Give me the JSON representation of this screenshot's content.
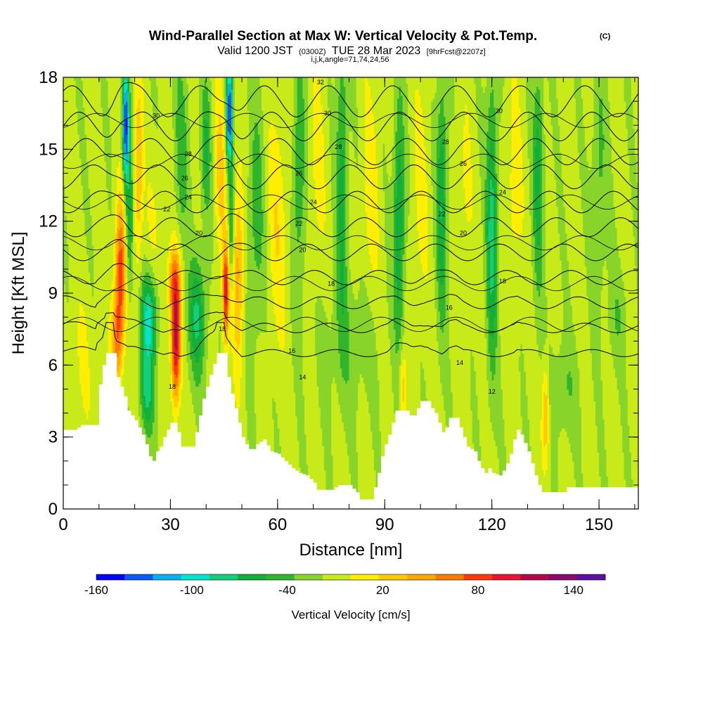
{
  "title": {
    "main": "Wind-Parallel Section at Max W: Vertical Velocity & Pot.Temp.",
    "copyright": "(C)",
    "valid_prefix": "Valid 1200 JST",
    "valid_utc": "(0300Z)",
    "valid_date": "TUE 28 Mar 2023",
    "forecast_info": "[9hrFcst@2207z]",
    "params": "i,j,k,angle=71,74,24,56"
  },
  "chart_data": {
    "type": "heatmap",
    "xlabel": "Distance [nm]",
    "ylabel": "Height [Kft MSL]",
    "xlim": [
      0,
      161
    ],
    "ylim": [
      0,
      18
    ],
    "x_ticks": [
      0,
      30,
      60,
      90,
      120,
      150
    ],
    "y_ticks": [
      0,
      3,
      6,
      9,
      12,
      15,
      18
    ],
    "x_minor_step": 10,
    "y_minor_step": 1,
    "grid": false,
    "colorbar": {
      "title": "Vertical Velocity [cm/s]",
      "placement": "bottom",
      "min": -160,
      "max": 160,
      "step": 20,
      "tick_labels": [
        "-160",
        "-100",
        "-40",
        "20",
        "80",
        "140"
      ],
      "tick_values": [
        -160,
        -100,
        -40,
        20,
        80,
        140
      ],
      "colors": [
        "#0000ff",
        "#0a5af2",
        "#0ab0f2",
        "#00e6cc",
        "#13cf7a",
        "#10b03b",
        "#30b52d",
        "#88d42a",
        "#c8ea18",
        "#ffee00",
        "#ffcb00",
        "#ffa800",
        "#ff7a00",
        "#ff3a0a",
        "#ea1530",
        "#b30a4c",
        "#8c0a6b",
        "#5a10a0"
      ]
    },
    "background_velocity": 5,
    "terrain": [
      [
        0,
        3.3
      ],
      [
        3,
        3.3
      ],
      [
        5,
        3.5
      ],
      [
        9,
        3.5
      ],
      [
        9,
        4.4
      ],
      [
        10,
        5.2
      ],
      [
        11,
        6.0
      ],
      [
        12,
        6.5
      ],
      [
        14,
        6.5
      ],
      [
        15,
        5.5
      ],
      [
        17,
        4.7
      ],
      [
        18,
        4.1
      ],
      [
        20,
        3.7
      ],
      [
        22,
        3.1
      ],
      [
        23,
        2.7
      ],
      [
        24,
        2.2
      ],
      [
        25,
        2.0
      ],
      [
        26,
        2.4
      ],
      [
        27,
        2.6
      ],
      [
        28,
        3.0
      ],
      [
        29,
        3.3
      ],
      [
        30,
        3.6
      ],
      [
        31,
        3.6
      ],
      [
        32,
        3.2
      ],
      [
        33,
        2.6
      ],
      [
        36,
        2.6
      ],
      [
        37,
        3.2
      ],
      [
        38,
        3.9
      ],
      [
        39,
        4.6
      ],
      [
        40,
        5.1
      ],
      [
        41,
        5.6
      ],
      [
        43,
        6.5
      ],
      [
        45,
        6.5
      ],
      [
        46,
        5.5
      ],
      [
        47,
        4.8
      ],
      [
        48,
        4.2
      ],
      [
        49,
        3.6
      ],
      [
        50,
        3.0
      ],
      [
        51,
        2.7
      ],
      [
        52,
        2.5
      ],
      [
        53,
        2.5
      ],
      [
        54,
        2.7
      ],
      [
        56,
        2.9
      ],
      [
        58,
        2.4
      ],
      [
        60,
        2.3
      ],
      [
        62,
        2.0
      ],
      [
        64,
        1.7
      ],
      [
        66,
        1.5
      ],
      [
        68,
        1.4
      ],
      [
        70,
        1.1
      ],
      [
        71,
        0.8
      ],
      [
        75,
        0.8
      ],
      [
        77,
        1.0
      ],
      [
        80,
        1.0
      ],
      [
        82,
        0.7
      ],
      [
        83,
        0.4
      ],
      [
        86,
        0.4
      ],
      [
        87,
        0.9
      ],
      [
        88,
        1.5
      ],
      [
        89,
        2.2
      ],
      [
        90,
        2.7
      ],
      [
        91,
        3.1
      ],
      [
        92,
        3.6
      ],
      [
        93,
        4.1
      ],
      [
        96,
        4.1
      ],
      [
        97,
        3.9
      ],
      [
        98,
        3.9
      ],
      [
        99,
        4.2
      ],
      [
        100,
        4.5
      ],
      [
        102,
        4.5
      ],
      [
        103,
        4.2
      ],
      [
        104,
        4.0
      ],
      [
        105,
        3.6
      ],
      [
        106,
        3.2
      ],
      [
        107,
        3.4
      ],
      [
        108,
        3.8
      ],
      [
        110,
        3.8
      ],
      [
        111,
        3.4
      ],
      [
        112,
        3.0
      ],
      [
        113,
        2.6
      ],
      [
        115,
        2.4
      ],
      [
        116,
        2.0
      ],
      [
        117,
        1.7
      ],
      [
        118,
        1.5
      ],
      [
        119,
        1.7
      ],
      [
        120,
        1.5
      ],
      [
        122,
        1.4
      ],
      [
        123,
        1.6
      ],
      [
        124,
        1.9
      ],
      [
        125,
        2.3
      ],
      [
        126,
        2.9
      ],
      [
        127,
        3.3
      ],
      [
        128,
        3.1
      ],
      [
        130,
        2.4
      ],
      [
        131,
        1.9
      ],
      [
        132,
        1.4
      ],
      [
        133,
        1.0
      ],
      [
        134,
        0.7
      ],
      [
        140,
        0.7
      ],
      [
        141,
        0.9
      ],
      [
        161,
        0.9
      ]
    ],
    "velocity_features": [
      {
        "x": 16,
        "z": 10,
        "sx": 1.5,
        "sz": 3,
        "w": 105
      },
      {
        "x": 15,
        "z": 7,
        "sx": 1.6,
        "sz": 2,
        "w": 70
      },
      {
        "x": 17.5,
        "z": 16,
        "sx": 0.9,
        "sz": 2.5,
        "w": -150
      },
      {
        "x": 18.5,
        "z": 12,
        "sx": 1.0,
        "sz": 3,
        "w": -60
      },
      {
        "x": 21,
        "z": 14,
        "sx": 1.2,
        "sz": 4,
        "w": 55
      },
      {
        "x": 24,
        "z": 8,
        "sx": 2.2,
        "sz": 1.8,
        "w": -90
      },
      {
        "x": 23.5,
        "z": 5,
        "sx": 2.0,
        "sz": 1.8,
        "w": -70
      },
      {
        "x": 26,
        "z": 12,
        "sx": 3,
        "sz": 3,
        "w": 15
      },
      {
        "x": 31.5,
        "z": 7,
        "sx": 1.3,
        "sz": 2.5,
        "w": 145
      },
      {
        "x": 31,
        "z": 9.5,
        "sx": 1.8,
        "sz": 1.5,
        "w": 70
      },
      {
        "x": 33,
        "z": 15,
        "sx": 2,
        "sz": 4,
        "w": -35
      },
      {
        "x": 37.5,
        "z": 8,
        "sx": 2.5,
        "sz": 2.5,
        "w": -65
      },
      {
        "x": 40,
        "z": 15,
        "sx": 1.5,
        "sz": 3,
        "w": -45
      },
      {
        "x": 44,
        "z": 14,
        "sx": 1.8,
        "sz": 4,
        "w": 40
      },
      {
        "x": 45.5,
        "z": 9,
        "sx": 0.8,
        "sz": 2,
        "w": 125
      },
      {
        "x": 46.5,
        "z": 16.5,
        "sx": 0.9,
        "sz": 2.2,
        "w": -150
      },
      {
        "x": 47,
        "z": 12,
        "sx": 0.8,
        "sz": 2.2,
        "w": -55
      },
      {
        "x": 49,
        "z": 10,
        "sx": 1.5,
        "sz": 4,
        "w": 65
      },
      {
        "x": 54,
        "z": 12,
        "sx": 2.5,
        "sz": 5,
        "w": -35
      },
      {
        "x": 60,
        "z": 12,
        "sx": 3,
        "sz": 5,
        "w": 30
      },
      {
        "x": 66,
        "z": 14,
        "sx": 1.8,
        "sz": 5,
        "w": -45
      },
      {
        "x": 71,
        "z": 14,
        "sx": 2.5,
        "sz": 5,
        "w": 20
      },
      {
        "x": 78,
        "z": 14,
        "sx": 1.5,
        "sz": 6,
        "w": -55
      },
      {
        "x": 80,
        "z": 7,
        "sx": 8,
        "sz": 3,
        "w": -20
      },
      {
        "x": 86,
        "z": 13,
        "sx": 2.5,
        "sz": 5,
        "w": 25
      },
      {
        "x": 94,
        "z": 12,
        "sx": 1.5,
        "sz": 5,
        "w": -70
      },
      {
        "x": 95,
        "z": 5,
        "sx": 1.0,
        "sz": 1.5,
        "w": 50
      },
      {
        "x": 100,
        "z": 13,
        "sx": 2.5,
        "sz": 5,
        "w": 20
      },
      {
        "x": 106,
        "z": 13,
        "sx": 1.5,
        "sz": 5,
        "w": -65
      },
      {
        "x": 112,
        "z": 12,
        "sx": 2.5,
        "sz": 5,
        "w": 20
      },
      {
        "x": 120,
        "z": 12,
        "sx": 1.5,
        "sz": 6,
        "w": -75
      },
      {
        "x": 126,
        "z": 13,
        "sx": 2.5,
        "sz": 5,
        "w": 25
      },
      {
        "x": 133,
        "z": 14,
        "sx": 1.5,
        "sz": 5,
        "w": -55
      },
      {
        "x": 135,
        "z": 4,
        "sx": 1.0,
        "sz": 2,
        "w": 60
      },
      {
        "x": 140,
        "z": 5,
        "sx": 4,
        "sz": 2,
        "w": -25
      },
      {
        "x": 150,
        "z": 14,
        "sx": 2,
        "sz": 5,
        "w": -30
      },
      {
        "x": 155,
        "z": 8,
        "sx": 3,
        "sz": 2,
        "w": -20
      },
      {
        "x": 5,
        "z": 6,
        "sx": 4,
        "sz": 3,
        "w": 15
      }
    ],
    "isentropes": {
      "levels": [
        12,
        14,
        16,
        18,
        20,
        22,
        24,
        26,
        28,
        30,
        32
      ],
      "base_height": 6.5,
      "spacing": 1.05,
      "labels": [
        {
          "text": "12",
          "x": 120,
          "z": 4.9
        },
        {
          "text": "14",
          "x": 67,
          "z": 5.5
        },
        {
          "text": "14",
          "x": 111,
          "z": 6.1
        },
        {
          "text": "16",
          "x": 64,
          "z": 6.6
        },
        {
          "text": "16",
          "x": 108,
          "z": 8.4
        },
        {
          "text": "18",
          "x": 30.5,
          "z": 5.1
        },
        {
          "text": "18",
          "x": 44.5,
          "z": 7.5
        },
        {
          "text": "18",
          "x": 75,
          "z": 9.4
        },
        {
          "text": "18",
          "x": 123,
          "z": 9.5
        },
        {
          "text": "20",
          "x": 38,
          "z": 11.5
        },
        {
          "text": "20",
          "x": 67,
          "z": 10.8
        },
        {
          "text": "20",
          "x": 112,
          "z": 11.5
        },
        {
          "text": "22",
          "x": 29,
          "z": 12.5
        },
        {
          "text": "22",
          "x": 66,
          "z": 11.9
        },
        {
          "text": "22",
          "x": 106,
          "z": 12.3
        },
        {
          "text": "24",
          "x": 35,
          "z": 13.0
        },
        {
          "text": "24",
          "x": 70,
          "z": 12.8
        },
        {
          "text": "24",
          "x": 123,
          "z": 13.2
        },
        {
          "text": "26",
          "x": 34,
          "z": 13.8
        },
        {
          "text": "26",
          "x": 66,
          "z": 14.0
        },
        {
          "text": "26",
          "x": 112,
          "z": 14.4
        },
        {
          "text": "28",
          "x": 35,
          "z": 14.8
        },
        {
          "text": "28",
          "x": 77,
          "z": 15.1
        },
        {
          "text": "28",
          "x": 107,
          "z": 15.3
        },
        {
          "text": "30",
          "x": 26,
          "z": 16.4
        },
        {
          "text": "30",
          "x": 74,
          "z": 16.5
        },
        {
          "text": "30",
          "x": 122,
          "z": 16.6
        },
        {
          "text": "32",
          "x": 72,
          "z": 17.8
        }
      ]
    }
  }
}
